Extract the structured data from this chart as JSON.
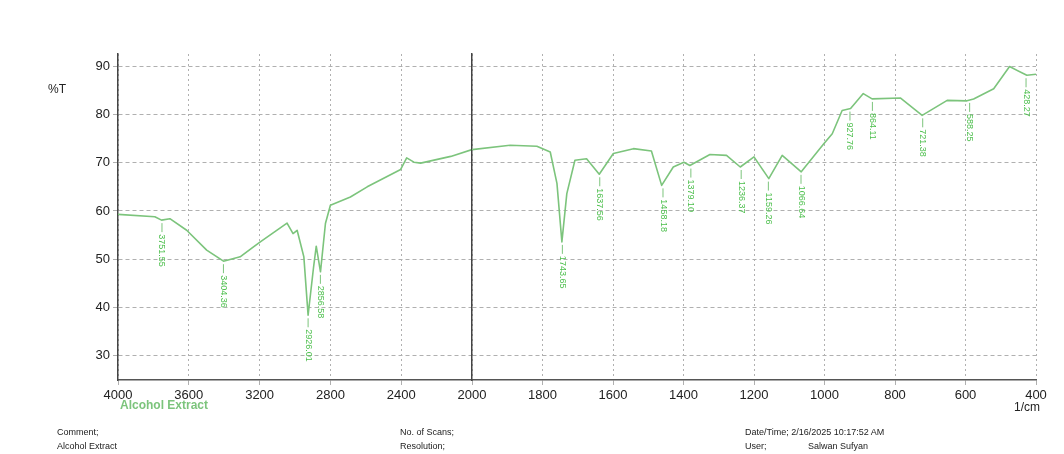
{
  "chart_data": [
    {
      "type": "line",
      "ylabel": "%T",
      "xlim": [
        4000,
        2000
      ],
      "xticks": [
        4000,
        3600,
        3200,
        2800,
        2400,
        2000
      ],
      "ylim": [
        25,
        92.5
      ],
      "yticks": [
        30,
        40,
        50,
        60,
        70,
        80,
        90
      ],
      "grid": true,
      "marker": "none",
      "x": [
        4000,
        3792,
        3754,
        3707,
        3612,
        3499,
        3404,
        3310,
        3196,
        3045,
        3011,
        2988,
        2950,
        2926,
        2895,
        2880,
        2856,
        2828,
        2800,
        2687,
        2592,
        2403,
        2369,
        2328,
        2290,
        2120,
        2000
      ],
      "series": [
        {
          "name": "Alcohol Extract",
          "color": "#7cc47c",
          "values": [
            59.3,
            58.8,
            58.1,
            58.4,
            56.0,
            51.9,
            49.6,
            50.5,
            53.6,
            57.5,
            55.3,
            56.0,
            50.5,
            38.4,
            48.4,
            52.7,
            47.4,
            57.4,
            61.2,
            62.9,
            65.0,
            68.6,
            71.0,
            70.1,
            69.9,
            71.3,
            72.7
          ]
        }
      ],
      "annotations": [
        {
          "text": "3751.55",
          "x": 3751.55,
          "y": 58.1
        },
        {
          "text": "3404.36",
          "x": 3404.36,
          "y": 49.6
        },
        {
          "text": "2926.01",
          "x": 2926.01,
          "y": 38.4
        },
        {
          "text": "2856.58",
          "x": 2856.58,
          "y": 47.4
        },
        "Comment;",
        "Alcohol Extract",
        "No. of Scans;",
        "Resolution;",
        "Date/Time; 2/16/2025 10:17:52 AM",
        "User;",
        "Salwan Sufyan"
      ]
    },
    {
      "type": "line",
      "xlabel": "1/cm",
      "xlim": [
        2000,
        400
      ],
      "xticks": [
        1800,
        1600,
        1400,
        1200,
        1000,
        800,
        600,
        400
      ],
      "ylim": [
        25,
        92.5
      ],
      "yticks": [
        30,
        40,
        50,
        60,
        70,
        80,
        90
      ],
      "tick_labels": "x",
      "grid": true,
      "marker": "none",
      "x": [
        2000,
        1892,
        1816,
        1778,
        1759,
        1745,
        1731,
        1708,
        1675,
        1639,
        1599,
        1542,
        1491,
        1462,
        1429,
        1399,
        1382,
        1325,
        1278,
        1239,
        1200,
        1158,
        1120,
        1066,
        1002,
        978,
        950,
        926,
        890,
        865,
        785,
        723,
        652,
        596,
        577,
        520,
        475,
        426,
        400
      ],
      "series": [
        {
          "color": "#7cc47c",
          "values": [
            72.7,
            73.6,
            73.4,
            72.2,
            65.7,
            53.6,
            63.6,
            70.5,
            70.8,
            67.6,
            71.9,
            72.9,
            72.4,
            65.3,
            69.1,
            70.1,
            69.4,
            71.7,
            71.5,
            69.1,
            71.2,
            66.7,
            71.5,
            68.1,
            73.9,
            76.0,
            80.8,
            81.2,
            84.3,
            83.2,
            83.4,
            79.8,
            82.9,
            82.8,
            83.2,
            85.3,
            89.9,
            88.1,
            88.3
          ]
        }
      ],
      "annotations": [
        {
          "text": "1743.65",
          "x": 1743.65,
          "y": 53.6
        },
        {
          "text": "1637.56",
          "x": 1637.56,
          "y": 67.6
        },
        {
          "text": "1458.18",
          "x": 1458.18,
          "y": 65.3
        },
        {
          "text": "1379.10",
          "x": 1379.1,
          "y": 69.4
        },
        {
          "text": "1236.37",
          "x": 1236.37,
          "y": 69.1
        },
        {
          "text": "1159.26",
          "x": 1159.26,
          "y": 66.7
        },
        {
          "text": "1066.64",
          "x": 1066.64,
          "y": 68.1
        },
        {
          "text": "927.76",
          "x": 927.76,
          "y": 81.2
        },
        {
          "text": "864.11",
          "x": 864.11,
          "y": 83.2
        },
        {
          "text": "721.38",
          "x": 721.38,
          "y": 79.8
        },
        {
          "text": "588.25",
          "x": 588.25,
          "y": 83.0
        },
        {
          "text": "428.27",
          "x": 428.27,
          "y": 88.1
        }
      ]
    }
  ]
}
